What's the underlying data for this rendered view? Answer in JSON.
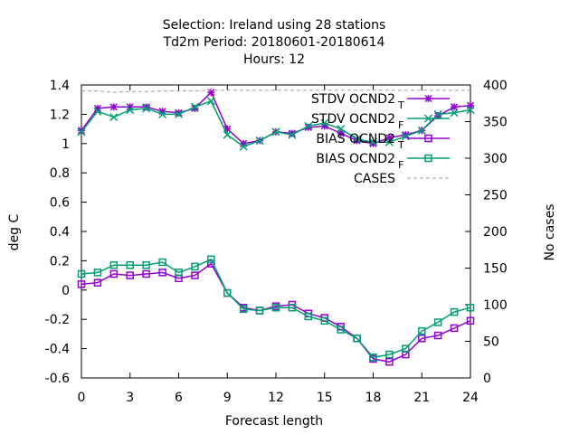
{
  "chart_data": {
    "type": "line",
    "title_lines": [
      "Selection: Ireland using    28 stations",
      "Td2m   Period: 20180601-20180614",
      "Hours:  12"
    ],
    "xlabel": "Forecast length",
    "ylabel": "deg C",
    "y2label": "No cases",
    "xlim": [
      0,
      24
    ],
    "ylim": [
      -0.6,
      1.4
    ],
    "y2lim": [
      0,
      400
    ],
    "xticks": [
      0,
      3,
      6,
      9,
      12,
      15,
      18,
      21,
      24
    ],
    "yticks": [
      -0.6,
      -0.4,
      -0.2,
      0,
      0.2,
      0.4,
      0.6,
      0.8,
      1,
      1.2,
      1.4
    ],
    "ytick_labels": [
      "-0.6",
      "-0.4",
      "-0.2",
      "0",
      "0.2",
      "0.4",
      "0.6",
      "0.8",
      "1",
      "1.2",
      "1.4"
    ],
    "y2ticks": [
      0,
      50,
      100,
      150,
      200,
      250,
      300,
      350,
      400
    ],
    "legend_position": "top-right",
    "x": [
      0,
      1,
      2,
      3,
      4,
      5,
      6,
      7,
      8,
      9,
      10,
      11,
      12,
      13,
      14,
      15,
      16,
      17,
      18,
      19,
      20,
      21,
      22,
      23,
      24
    ],
    "series": [
      {
        "name": "STDV OCND2",
        "subscript": "T",
        "color": "#9400d3",
        "marker": "star",
        "axis": "y",
        "values": [
          1.09,
          1.24,
          1.25,
          1.25,
          1.25,
          1.22,
          1.21,
          1.24,
          1.35,
          1.1,
          1.0,
          1.02,
          1.08,
          1.07,
          1.11,
          1.12,
          1.07,
          1.02,
          1.0,
          1.04,
          1.06,
          1.09,
          1.19,
          1.25,
          1.26
        ]
      },
      {
        "name": "STDV OCND2",
        "subscript": "F",
        "color": "#009e73",
        "marker": "cross",
        "axis": "y",
        "values": [
          1.08,
          1.22,
          1.18,
          1.23,
          1.24,
          1.2,
          1.2,
          1.25,
          1.29,
          1.06,
          0.98,
          1.02,
          1.08,
          1.06,
          1.12,
          1.14,
          1.1,
          1.03,
          1.01,
          1.01,
          1.05,
          1.09,
          1.2,
          1.21,
          1.23
        ]
      },
      {
        "name": "BIAS OCND2",
        "subscript": "T",
        "color": "#9400d3",
        "marker": "square",
        "axis": "y",
        "values": [
          0.04,
          0.05,
          0.11,
          0.1,
          0.11,
          0.12,
          0.08,
          0.1,
          0.18,
          -0.02,
          -0.12,
          -0.14,
          -0.11,
          -0.1,
          -0.16,
          -0.19,
          -0.25,
          -0.33,
          -0.47,
          -0.49,
          -0.44,
          -0.33,
          -0.31,
          -0.26,
          -0.21
        ]
      },
      {
        "name": "BIAS OCND2",
        "subscript": "F",
        "color": "#009e73",
        "marker": "square",
        "axis": "y",
        "values": [
          0.11,
          0.12,
          0.17,
          0.17,
          0.17,
          0.19,
          0.12,
          0.16,
          0.21,
          -0.02,
          -0.13,
          -0.14,
          -0.12,
          -0.12,
          -0.18,
          -0.21,
          -0.27,
          -0.33,
          -0.46,
          -0.44,
          -0.4,
          -0.28,
          -0.22,
          -0.15,
          -0.12
        ]
      },
      {
        "name": "CASES",
        "subscript": "",
        "color": "#a0a0a0",
        "marker": "none",
        "dashed": true,
        "axis": "y2",
        "values": [
          392,
          392,
          390,
          391,
          391,
          392,
          392,
          392,
          393,
          393,
          393,
          393,
          393,
          393,
          393,
          393,
          393,
          393,
          393,
          393,
          393,
          393,
          393,
          393,
          393
        ]
      }
    ]
  }
}
